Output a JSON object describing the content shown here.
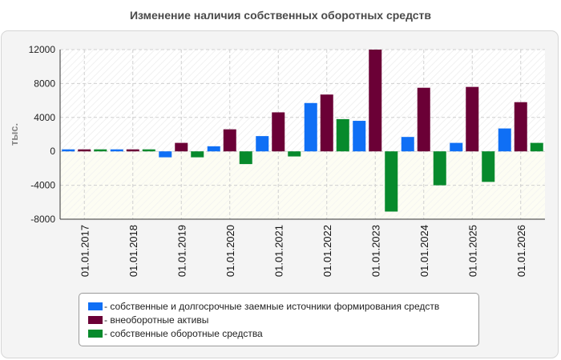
{
  "chart_data": {
    "type": "bar",
    "title": "Изменение наличия собственных оборотных средств",
    "ylabel": "тыс.",
    "xlabel": "",
    "ylim": [
      -8000,
      12000
    ],
    "yticks": [
      12000,
      8000,
      4000,
      0,
      -4000,
      -8000
    ],
    "grid": true,
    "legend_position": "bottom",
    "categories": [
      "01.01.2017",
      "01.01.2018",
      "01.01.2019",
      "01.01.2020",
      "01.01.2021",
      "01.01.2022",
      "01.01.2023",
      "01.01.2024",
      "01.01.2025",
      "01.01.2026"
    ],
    "series": [
      {
        "name": "собственные и долгосрочные заемные источники формирования средств",
        "color": "#0f6ff5",
        "values": [
          100,
          150,
          -700,
          600,
          1800,
          5700,
          3600,
          1700,
          1000,
          2700
        ]
      },
      {
        "name": "внеоборотные активы",
        "color": "#6b0036",
        "values": [
          150,
          150,
          1000,
          2600,
          4600,
          6700,
          12000,
          7500,
          7600,
          5800
        ]
      },
      {
        "name": "собственные оборотные средства",
        "color": "#078a2c",
        "values": [
          100,
          100,
          -700,
          -1500,
          -600,
          3800,
          -7100,
          -4000,
          -3600,
          1000
        ]
      }
    ]
  }
}
